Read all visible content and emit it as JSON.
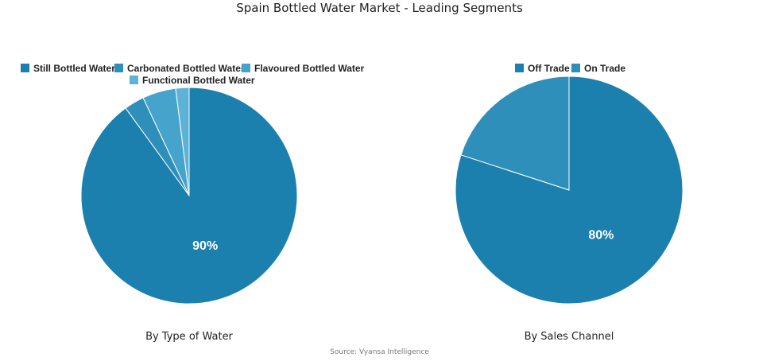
{
  "title": "Spain Bottled Water Market - Leading Segments",
  "source": "Source: Vyansa Intelligence",
  "chart_data": [
    {
      "type": "pie",
      "caption": "By Type of Water",
      "slices": [
        {
          "name": "Still Bottled Water",
          "value": 90,
          "color": "#1b80ad",
          "label": "90%"
        },
        {
          "name": "Carbonated Bottled Water",
          "value": 3,
          "color": "#2e8fba",
          "label": ""
        },
        {
          "name": "Flavoured Bottled Water",
          "value": 5,
          "color": "#46a3cb",
          "label": ""
        },
        {
          "name": "Functional Bottled Water",
          "value": 2,
          "color": "#5cb3d6",
          "label": ""
        }
      ],
      "legend_position": "top"
    },
    {
      "type": "pie",
      "caption": "By Sales Channel",
      "slices": [
        {
          "name": "Off Trade",
          "value": 80,
          "color": "#1b80ad",
          "label": "80%"
        },
        {
          "name": "On Trade",
          "value": 20,
          "color": "#2e8fba",
          "label": ""
        }
      ],
      "legend_position": "top"
    }
  ]
}
